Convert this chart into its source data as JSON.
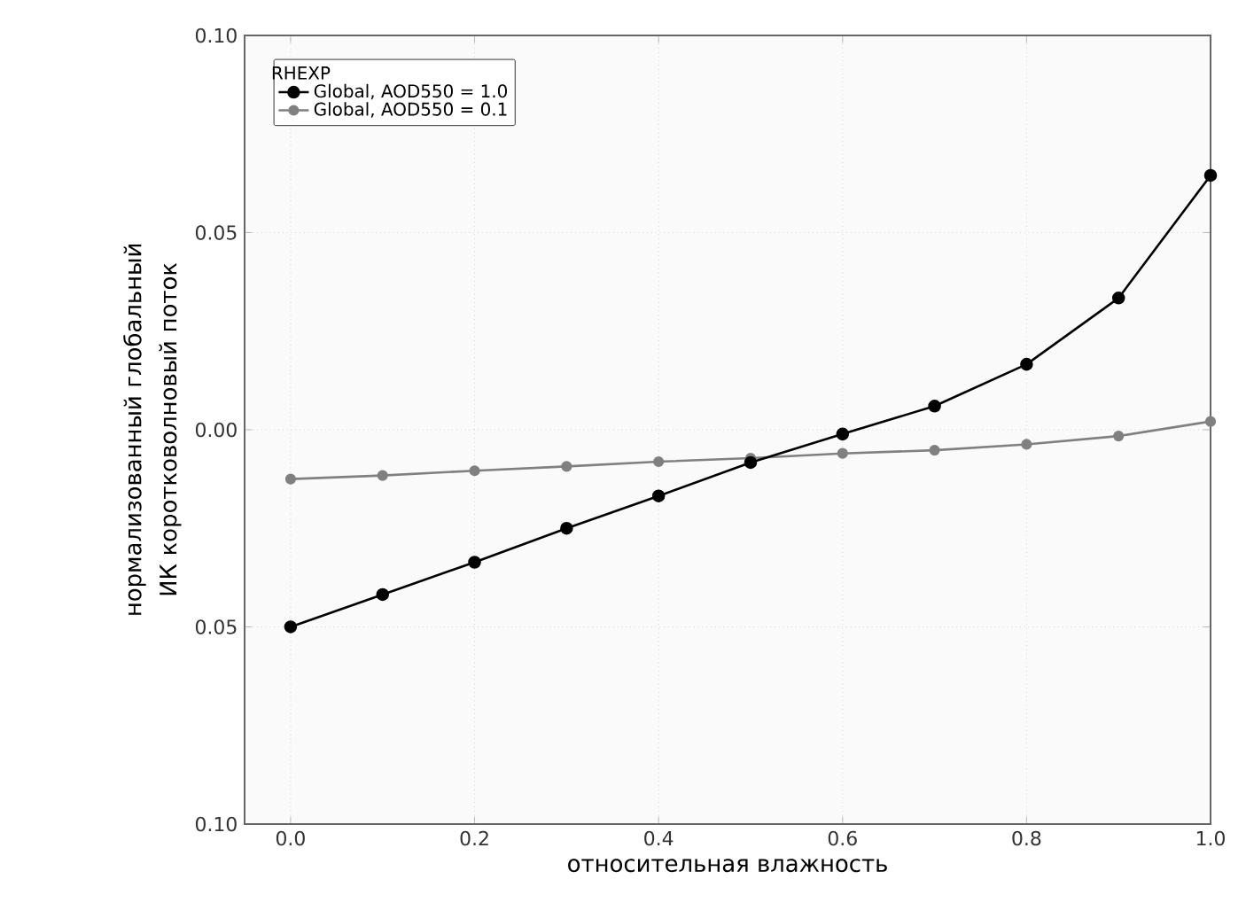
{
  "chart_data": {
    "type": "line",
    "xlabel": "относительная влажность",
    "ylabel": "нормализованный глобальный ИК коротковолновый  поток",
    "legend_title": "RHEXP",
    "x": [
      0.0,
      0.1,
      0.2,
      0.3,
      0.4,
      0.5,
      0.6,
      0.7,
      0.8,
      0.9,
      1.0
    ],
    "series": [
      {
        "name": "Global, AOD550 = 1.0",
        "color": "#000000",
        "values": [
          -0.05,
          -0.0418,
          -0.0336,
          -0.025,
          -0.0168,
          -0.0083,
          -0.0011,
          0.006,
          0.0166,
          0.0334,
          0.0645
        ]
      },
      {
        "name": "Global, AOD550 = 0.1",
        "color": "#808080",
        "values": [
          -0.0125,
          -0.0116,
          -0.0104,
          -0.0093,
          -0.0081,
          -0.0072,
          -0.006,
          -0.0052,
          -0.0037,
          -0.0016,
          0.0021
        ]
      }
    ],
    "xlim": [
      -0.05,
      1.0
    ],
    "ylim": [
      -0.1,
      0.1
    ],
    "xticks": [
      {
        "value": 0.0,
        "label": "0.0"
      },
      {
        "value": 0.2,
        "label": "0.2"
      },
      {
        "value": 0.4,
        "label": "0.4"
      },
      {
        "value": 0.6,
        "label": "0.6"
      },
      {
        "value": 0.8,
        "label": "0.8"
      },
      {
        "value": 1.0,
        "label": "1.0"
      }
    ],
    "yticks": [
      {
        "value": -0.1,
        "label": "0.10"
      },
      {
        "value": -0.05,
        "label": "0.05"
      },
      {
        "value": 0.0,
        "label": "0.00"
      },
      {
        "value": 0.05,
        "label": "0.05"
      },
      {
        "value": 0.1,
        "label": "0.10"
      }
    ],
    "grid": true,
    "legend": "top left",
    "marker": "circle",
    "line_style": "solid"
  }
}
